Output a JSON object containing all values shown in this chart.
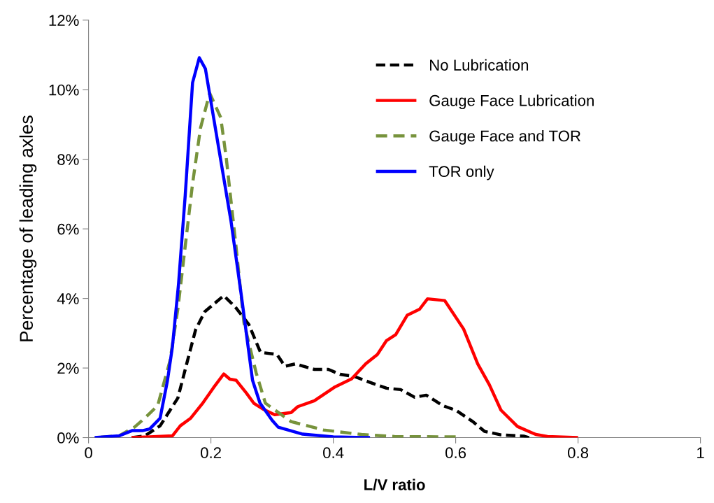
{
  "chart_data": {
    "type": "line",
    "xlabel": "L/V ratio",
    "ylabel": "Percentage of leading axles",
    "xlim": [
      0,
      1
    ],
    "xticks": [
      0,
      0.2,
      0.4,
      0.6,
      0.8,
      1
    ],
    "ylim": [
      0,
      12
    ],
    "yticks": [
      {
        "value": 0,
        "label": "0%"
      },
      {
        "value": 2,
        "label": "2%"
      },
      {
        "value": 4,
        "label": "4%"
      },
      {
        "value": 6,
        "label": "6%"
      },
      {
        "value": 8,
        "label": "8%"
      },
      {
        "value": 10,
        "label": "10%"
      },
      {
        "value": 12,
        "label": "12%"
      }
    ],
    "grid": false,
    "legend": "top right",
    "marker": "none",
    "series": [
      {
        "name": "No Lubrication",
        "color": "#000000",
        "line_style": "dashed",
        "x": [
          0.07,
          0.092,
          0.117,
          0.146,
          0.162,
          0.175,
          0.19,
          0.221,
          0.24,
          0.262,
          0.281,
          0.308,
          0.321,
          0.338,
          0.369,
          0.392,
          0.411,
          0.434,
          0.464,
          0.487,
          0.51,
          0.533,
          0.552,
          0.579,
          0.601,
          0.628,
          0.647,
          0.674,
          0.712,
          0.72
        ],
        "values": [
          0,
          0.05,
          0.34,
          1.14,
          2.23,
          3.1,
          3.62,
          4.08,
          3.75,
          3.25,
          2.45,
          2.39,
          2.05,
          2.12,
          1.96,
          1.96,
          1.82,
          1.76,
          1.56,
          1.42,
          1.38,
          1.16,
          1.22,
          0.92,
          0.78,
          0.46,
          0.18,
          0.08,
          0.04,
          0
        ]
      },
      {
        "name": "Gauge Face Lubrication",
        "color": "#ff0000",
        "line_style": "solid",
        "x": [
          0.07,
          0.1,
          0.137,
          0.15,
          0.167,
          0.187,
          0.204,
          0.221,
          0.231,
          0.241,
          0.258,
          0.27,
          0.285,
          0.304,
          0.331,
          0.342,
          0.369,
          0.403,
          0.43,
          0.453,
          0.472,
          0.487,
          0.502,
          0.521,
          0.541,
          0.554,
          0.582,
          0.613,
          0.636,
          0.655,
          0.674,
          0.701,
          0.731,
          0.75,
          0.8
        ],
        "values": [
          0,
          0.02,
          0.05,
          0.34,
          0.56,
          1.0,
          1.43,
          1.83,
          1.68,
          1.65,
          1.28,
          0.99,
          0.82,
          0.66,
          0.72,
          0.89,
          1.06,
          1.46,
          1.69,
          2.12,
          2.39,
          2.79,
          2.96,
          3.52,
          3.69,
          3.99,
          3.94,
          3.12,
          2.12,
          1.52,
          0.79,
          0.32,
          0.09,
          0.03,
          0
        ]
      },
      {
        "name": "Gauge Face and TOR",
        "color": "#77933c",
        "line_style": "dashed",
        "x": [
          0.01,
          0.05,
          0.075,
          0.092,
          0.113,
          0.133,
          0.146,
          0.158,
          0.17,
          0.183,
          0.198,
          0.216,
          0.225,
          0.241,
          0.254,
          0.274,
          0.289,
          0.331,
          0.384,
          0.446,
          0.5,
          0.6
        ],
        "values": [
          0,
          0.05,
          0.3,
          0.56,
          0.92,
          2.2,
          3.7,
          5.5,
          7.3,
          8.9,
          9.9,
          9.2,
          8.05,
          5.5,
          3.3,
          1.86,
          0.99,
          0.46,
          0.22,
          0.09,
          0.03,
          0.02
        ]
      },
      {
        "name": "TOR only",
        "color": "#0000ff",
        "line_style": "solid",
        "x": [
          0.01,
          0.05,
          0.071,
          0.088,
          0.1,
          0.117,
          0.129,
          0.137,
          0.147,
          0.158,
          0.17,
          0.181,
          0.191,
          0.212,
          0.233,
          0.25,
          0.268,
          0.28,
          0.3,
          0.31,
          0.35,
          0.4,
          0.46
        ],
        "values": [
          0,
          0.05,
          0.2,
          0.2,
          0.25,
          0.56,
          1.64,
          2.6,
          4.4,
          6.96,
          10.2,
          10.92,
          10.6,
          8.4,
          6.2,
          4.05,
          1.65,
          1.0,
          0.5,
          0.3,
          0.1,
          0.02,
          0
        ]
      }
    ]
  }
}
